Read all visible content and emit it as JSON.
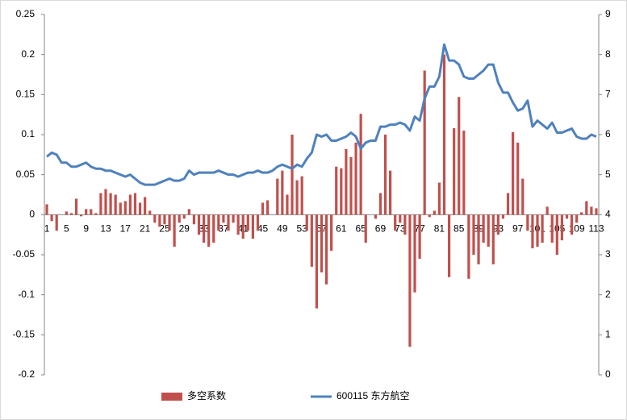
{
  "chart_data": {
    "type": "combo",
    "categories": [
      "1",
      null,
      null,
      null,
      "5",
      null,
      null,
      null,
      "9",
      null,
      null,
      null,
      "13",
      null,
      null,
      null,
      "17",
      null,
      null,
      null,
      "21",
      null,
      null,
      null,
      "25",
      null,
      null,
      null,
      "29",
      null,
      null,
      null,
      "33",
      null,
      null,
      null,
      "37",
      null,
      null,
      null,
      "41",
      null,
      null,
      null,
      "45",
      null,
      null,
      null,
      "49",
      null,
      null,
      null,
      "53",
      null,
      null,
      null,
      "57",
      null,
      null,
      null,
      "61",
      null,
      null,
      null,
      "65",
      null,
      null,
      null,
      "69",
      null,
      null,
      null,
      "73",
      null,
      null,
      null,
      "77",
      null,
      null,
      null,
      "81",
      null,
      null,
      null,
      "85",
      null,
      null,
      null,
      "89",
      null,
      null,
      null,
      "93",
      null,
      null,
      null,
      "97",
      null,
      null,
      null,
      "101",
      null,
      null,
      null,
      "105",
      null,
      null,
      null,
      "109",
      null,
      null,
      null,
      "113"
    ],
    "series": [
      {
        "name": "多空系数",
        "type": "bar",
        "color": "#c0504d",
        "values": [
          0.013,
          -0.008,
          -0.02,
          0,
          0.004,
          0.002,
          0.02,
          -0.002,
          0.007,
          0.007,
          0.002,
          0.027,
          0.032,
          0.027,
          0.025,
          0.015,
          0.017,
          0.025,
          0.027,
          0.015,
          0.022,
          0.005,
          -0.01,
          -0.015,
          -0.012,
          -0.02,
          -0.04,
          -0.01,
          -0.005,
          0.007,
          -0.012,
          -0.025,
          -0.035,
          -0.04,
          -0.035,
          -0.02,
          -0.01,
          -0.02,
          -0.01,
          -0.025,
          -0.03,
          -0.02,
          -0.03,
          -0.02,
          0.015,
          0.018,
          0,
          0.045,
          0.055,
          0.025,
          0.1,
          0.043,
          0.048,
          -0.02,
          -0.065,
          -0.117,
          -0.072,
          -0.087,
          -0.045,
          0.06,
          0.058,
          0.082,
          0.072,
          0.09,
          0.126,
          -0.035,
          0,
          -0.005,
          0.027,
          0.1,
          0.055,
          -0.02,
          -0.01,
          -0.025,
          -0.165,
          -0.097,
          -0.055,
          0.18,
          -0.003,
          0.005,
          0.04,
          0.2,
          -0.078,
          0.108,
          0.147,
          0.105,
          -0.08,
          -0.05,
          -0.062,
          -0.035,
          -0.04,
          -0.062,
          -0.025,
          -0.005,
          0.027,
          0.103,
          0.09,
          0.045,
          -0.02,
          -0.042,
          -0.04,
          -0.035,
          0.01,
          -0.035,
          -0.05,
          -0.032,
          -0.005,
          -0.025,
          -0.01,
          0.003,
          0.017,
          0.01,
          0.008
        ]
      },
      {
        "name": "600115 东方航空",
        "type": "line",
        "axis": "y2",
        "color": "#4f81bd",
        "values": [
          5.45,
          5.55,
          5.5,
          5.3,
          5.3,
          5.2,
          5.2,
          5.25,
          5.3,
          5.2,
          5.15,
          5.15,
          5.1,
          5.1,
          5.05,
          5.0,
          4.95,
          5.0,
          4.9,
          4.8,
          4.75,
          4.75,
          4.75,
          4.8,
          4.85,
          4.9,
          4.85,
          4.85,
          4.9,
          5.1,
          5.0,
          5.05,
          5.05,
          5.05,
          5.05,
          5.1,
          5.05,
          5.0,
          5.0,
          4.95,
          5.0,
          5.05,
          5.05,
          5.1,
          5.05,
          5.05,
          5.1,
          5.2,
          5.25,
          5.2,
          5.15,
          5.25,
          5.2,
          5.4,
          5.55,
          6.0,
          5.95,
          6.0,
          5.85,
          5.85,
          5.9,
          5.95,
          6.05,
          5.95,
          5.65,
          5.8,
          5.85,
          5.85,
          6.2,
          6.2,
          6.25,
          6.25,
          6.3,
          6.25,
          6.1,
          6.45,
          6.35,
          6.9,
          7.2,
          7.2,
          7.45,
          8.25,
          7.85,
          7.85,
          7.75,
          7.45,
          7.4,
          7.4,
          7.5,
          7.6,
          7.75,
          7.75,
          7.3,
          7.05,
          7.05,
          6.8,
          6.6,
          6.65,
          6.85,
          6.2,
          6.35,
          6.25,
          6.15,
          6.3,
          6.05,
          6.05,
          6.1,
          6.15,
          5.95,
          5.9,
          5.9,
          6.0,
          5.95
        ]
      }
    ],
    "ylim": [
      -0.2,
      0.25
    ],
    "yticks": [
      -0.2,
      -0.15,
      -0.1,
      -0.05,
      0,
      0.05,
      0.1,
      0.15,
      0.2,
      0.25
    ],
    "y2lim": [
      0,
      9
    ],
    "y2ticks": [
      0,
      1,
      2,
      3,
      4,
      5,
      6,
      7,
      8,
      9
    ],
    "legend": "bottom"
  }
}
